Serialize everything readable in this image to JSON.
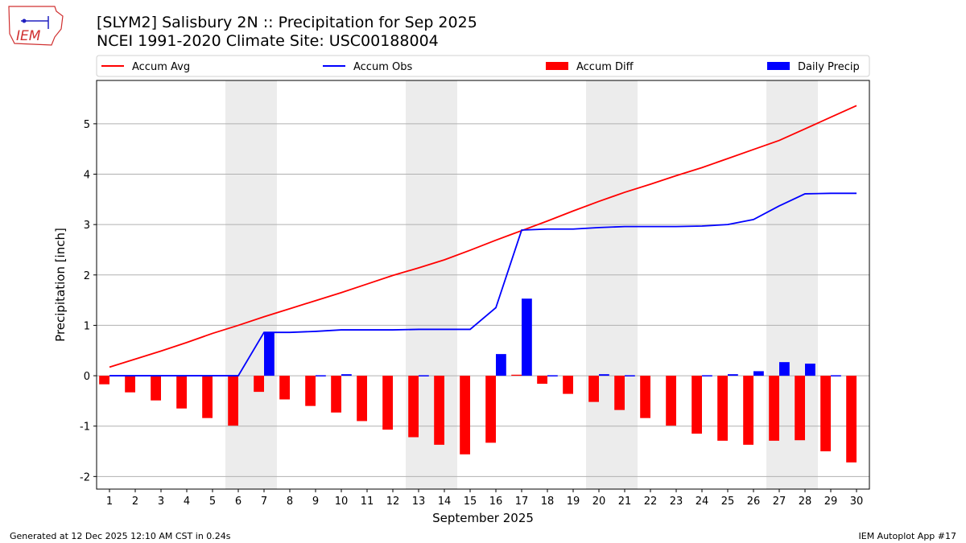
{
  "header": {
    "title": "[SLYM2] Salisbury 2N :: Precipitation for Sep 2025",
    "subtitle": "NCEI 1991-2020 Climate Site: USC00188004",
    "logo_text": "IEM"
  },
  "footer": {
    "generated": "Generated at 12 Dec 2025 12:10 AM CST in 0.24s",
    "app": "IEM Autoplot App #17"
  },
  "chart_data": {
    "type": "bar",
    "xlabel": "September 2025",
    "ylabel": "Precipitation [inch]",
    "xlim": [
      0.5,
      30.5
    ],
    "ylim": [
      -2.25,
      5.86
    ],
    "yticks": [
      -2,
      -1,
      0,
      1,
      2,
      3,
      4,
      5
    ],
    "grid": "horizontal",
    "legend_placement": "top",
    "x": [
      1,
      2,
      3,
      4,
      5,
      6,
      7,
      8,
      9,
      10,
      11,
      12,
      13,
      14,
      15,
      16,
      17,
      18,
      19,
      20,
      21,
      22,
      23,
      24,
      25,
      26,
      27,
      28,
      29,
      30
    ],
    "weekend_shading": [
      [
        6,
        7
      ],
      [
        13,
        14
      ],
      [
        20,
        21
      ],
      [
        27,
        28
      ]
    ],
    "series": [
      {
        "name": "Accum Avg",
        "kind": "line",
        "color": "#ff0000",
        "values": [
          0.17,
          0.33,
          0.49,
          0.66,
          0.84,
          1.0,
          1.17,
          1.33,
          1.49,
          1.65,
          1.82,
          1.99,
          2.14,
          2.3,
          2.49,
          2.69,
          2.88,
          3.07,
          3.27,
          3.46,
          3.64,
          3.8,
          3.97,
          4.13,
          4.31,
          4.49,
          4.67,
          4.9,
          5.13,
          5.36
        ]
      },
      {
        "name": "Accum Obs",
        "kind": "line",
        "color": "#0000ff",
        "values": [
          0,
          0,
          0,
          0,
          0,
          0,
          0.86,
          0.86,
          0.88,
          0.91,
          0.91,
          0.91,
          0.92,
          0.92,
          0.92,
          1.35,
          2.89,
          2.91,
          2.91,
          2.94,
          2.96,
          2.96,
          2.96,
          2.97,
          3.0,
          3.1,
          3.37,
          3.61,
          3.62,
          3.62
        ]
      },
      {
        "name": "Accum Diff",
        "kind": "bar",
        "color": "#ff0000",
        "values": [
          -0.17,
          -0.33,
          -0.49,
          -0.65,
          -0.84,
          -0.99,
          -0.32,
          -0.47,
          -0.6,
          -0.73,
          -0.9,
          -1.07,
          -1.22,
          -1.37,
          -1.56,
          -1.33,
          0.02,
          -0.16,
          -0.36,
          -0.52,
          -0.68,
          -0.84,
          -0.99,
          -1.15,
          -1.29,
          -1.37,
          -1.29,
          -1.28,
          -1.5,
          -1.72
        ]
      },
      {
        "name": "Daily Precip",
        "kind": "bar",
        "color": "#0000ff",
        "values": [
          0,
          0,
          0,
          0,
          0,
          0,
          0.86,
          0,
          0.01,
          0.03,
          0,
          0,
          0.01,
          0,
          0,
          0.43,
          1.53,
          0.01,
          0,
          0.03,
          0.01,
          0,
          0,
          0.01,
          0.03,
          0.09,
          0.27,
          0.24,
          0.01,
          0
        ]
      }
    ]
  }
}
